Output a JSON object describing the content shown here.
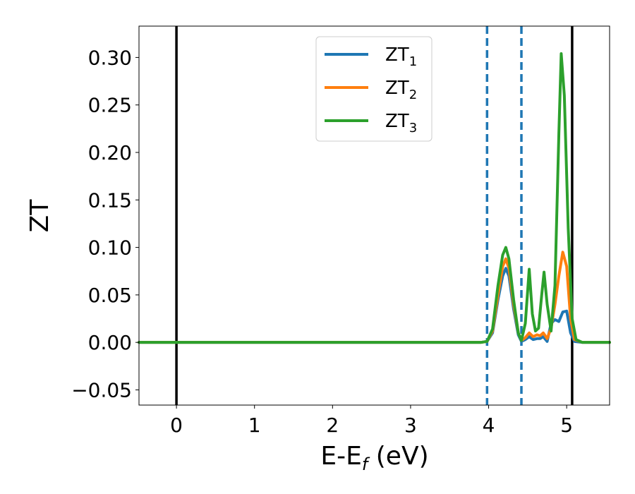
{
  "chart_data": {
    "type": "line",
    "xlabel": "E-E",
    "xlabel_sub": "f",
    "xlabel_unit": " (eV)",
    "ylabel": "ZT",
    "xlim": [
      -0.48,
      5.55
    ],
    "ylim": [
      -0.066,
      0.333
    ],
    "xticks": [
      0,
      1,
      2,
      3,
      4,
      5
    ],
    "xtick_labels": [
      "0",
      "1",
      "2",
      "3",
      "4",
      "5"
    ],
    "yticks": [
      -0.05,
      0.0,
      0.05,
      0.1,
      0.15,
      0.2,
      0.25,
      0.3
    ],
    "ytick_labels": [
      "−0.05",
      "0.00",
      "0.05",
      "0.10",
      "0.15",
      "0.20",
      "0.25",
      "0.30"
    ],
    "grid": false,
    "legend_position": "top-center",
    "vlines_solid": [
      0.0,
      5.07
    ],
    "vlines_dashed": [
      3.98,
      4.42
    ],
    "vline_solid_color": "#000000",
    "vline_dashed_color": "#1f77b4",
    "series": [
      {
        "name": "ZT",
        "sub": "1",
        "color": "#1f77b4",
        "x": [
          -0.48,
          3.9,
          3.98,
          4.05,
          4.12,
          4.18,
          4.22,
          4.26,
          4.32,
          4.38,
          4.42,
          4.47,
          4.52,
          4.57,
          4.62,
          4.66,
          4.7,
          4.75,
          4.8,
          4.85,
          4.9,
          4.95,
          5.0,
          5.05,
          5.1,
          5.2,
          5.55
        ],
        "y": [
          0.0,
          0.0,
          0.001,
          0.01,
          0.045,
          0.07,
          0.078,
          0.07,
          0.035,
          0.008,
          0.001,
          0.003,
          0.006,
          0.003,
          0.004,
          0.004,
          0.006,
          0.001,
          0.02,
          0.024,
          0.022,
          0.032,
          0.033,
          0.01,
          0.001,
          0.0,
          0.0
        ]
      },
      {
        "name": "ZT",
        "sub": "2",
        "color": "#ff7f0e",
        "x": [
          -0.48,
          3.9,
          3.98,
          4.05,
          4.12,
          4.18,
          4.22,
          4.26,
          4.32,
          4.38,
          4.42,
          4.47,
          4.52,
          4.57,
          4.62,
          4.66,
          4.7,
          4.75,
          4.8,
          4.85,
          4.9,
          4.95,
          5.0,
          5.05,
          5.1,
          5.2,
          5.55
        ],
        "y": [
          0.0,
          0.0,
          0.001,
          0.012,
          0.05,
          0.08,
          0.088,
          0.078,
          0.04,
          0.01,
          0.002,
          0.005,
          0.01,
          0.006,
          0.008,
          0.007,
          0.01,
          0.004,
          0.015,
          0.04,
          0.07,
          0.095,
          0.08,
          0.025,
          0.003,
          0.0,
          0.0
        ]
      },
      {
        "name": "ZT",
        "sub": "3",
        "color": "#2ca02c",
        "x": [
          -0.48,
          3.9,
          3.98,
          4.05,
          4.12,
          4.18,
          4.22,
          4.26,
          4.32,
          4.38,
          4.42,
          4.47,
          4.52,
          4.56,
          4.6,
          4.64,
          4.68,
          4.71,
          4.75,
          4.8,
          4.85,
          4.9,
          4.93,
          4.97,
          5.02,
          5.07,
          5.12,
          5.2,
          5.55
        ],
        "y": [
          0.0,
          0.0,
          0.001,
          0.014,
          0.06,
          0.092,
          0.1,
          0.088,
          0.045,
          0.01,
          0.002,
          0.02,
          0.077,
          0.03,
          0.012,
          0.015,
          0.05,
          0.074,
          0.04,
          0.012,
          0.06,
          0.22,
          0.304,
          0.26,
          0.12,
          0.025,
          0.003,
          0.0,
          0.0
        ]
      }
    ]
  }
}
